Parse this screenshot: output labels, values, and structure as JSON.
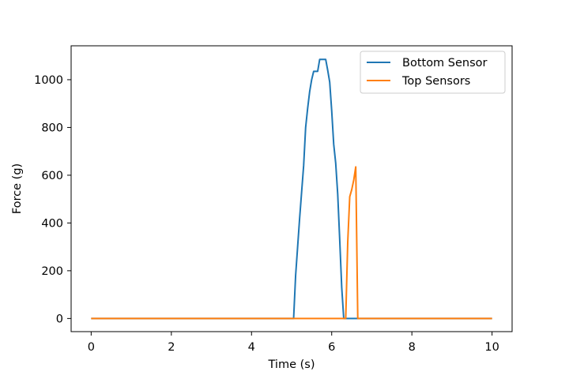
{
  "chart_data": {
    "type": "line",
    "title": "",
    "xlabel": "Time (s)",
    "ylabel": "Force (g)",
    "xlim": [
      -0.5,
      10.5
    ],
    "ylim": [
      -55,
      1142
    ],
    "xticks": [
      0,
      2,
      4,
      6,
      8,
      10
    ],
    "yticks": [
      0,
      200,
      400,
      600,
      800,
      1000
    ],
    "grid": false,
    "legend_position": "top-right",
    "series": [
      {
        "name": "Bottom Sensor",
        "color": "#1f77b4",
        "x": [
          0,
          5.05,
          5.1,
          5.15,
          5.2,
          5.25,
          5.3,
          5.35,
          5.4,
          5.45,
          5.5,
          5.55,
          5.6,
          5.65,
          5.7,
          5.75,
          5.8,
          5.85,
          5.9,
          5.95,
          6.0,
          6.05,
          6.1,
          6.15,
          6.2,
          6.25,
          6.3,
          6.35,
          6.4,
          10
        ],
        "y": [
          0,
          0,
          180,
          300,
          420,
          530,
          640,
          800,
          880,
          950,
          1000,
          1035,
          1035,
          1035,
          1085,
          1085,
          1085,
          1085,
          1040,
          990,
          870,
          730,
          650,
          520,
          330,
          130,
          0,
          0,
          0,
          0
        ]
      },
      {
        "name": "Top Sensors",
        "color": "#ff7f0e",
        "x": [
          0,
          6.35,
          6.4,
          6.45,
          6.5,
          6.55,
          6.6,
          6.65,
          6.7,
          10
        ],
        "y": [
          0,
          0,
          320,
          510,
          540,
          580,
          635,
          0,
          0,
          0
        ]
      }
    ]
  }
}
